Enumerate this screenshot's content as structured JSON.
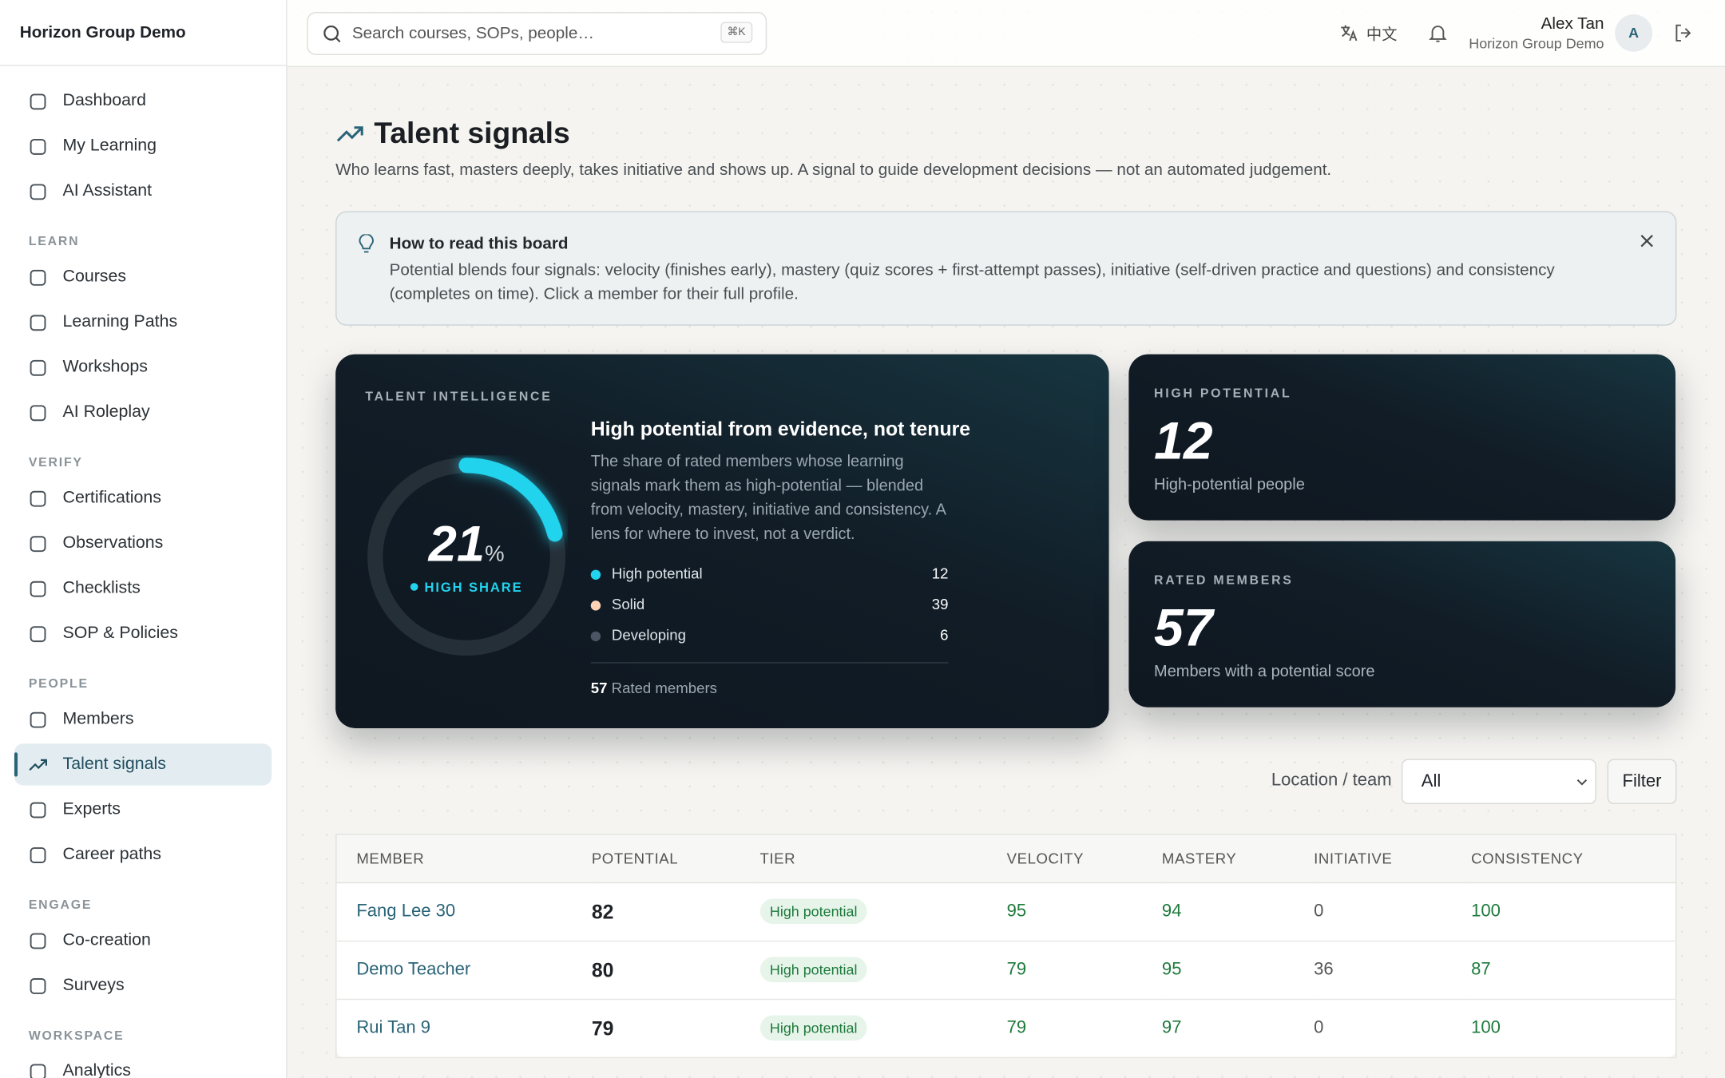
{
  "app": "Horizon Group Demo",
  "sidebar": {
    "groups": [
      {
        "items": [
          {
            "label": "Dashboard"
          },
          {
            "label": "My Learning"
          },
          {
            "label": "AI Assistant"
          }
        ]
      },
      {
        "title": "LEARN",
        "items": [
          {
            "label": "Courses"
          },
          {
            "label": "Learning Paths"
          },
          {
            "label": "Workshops"
          },
          {
            "label": "AI Roleplay"
          }
        ]
      },
      {
        "title": "VERIFY",
        "items": [
          {
            "label": "Certifications"
          },
          {
            "label": "Observations"
          },
          {
            "label": "Checklists"
          },
          {
            "label": "SOP & Policies"
          }
        ]
      },
      {
        "title": "PEOPLE",
        "items": [
          {
            "label": "Members"
          },
          {
            "label": "Talent signals",
            "active": true
          },
          {
            "label": "Experts"
          },
          {
            "label": "Career paths"
          }
        ]
      },
      {
        "title": "ENGAGE",
        "items": [
          {
            "label": "Co-creation"
          },
          {
            "label": "Surveys"
          }
        ]
      },
      {
        "title": "WORKSPACE",
        "items": [
          {
            "label": "Analytics"
          }
        ]
      }
    ]
  },
  "topbar": {
    "search": "Search courses, SOPs, people…",
    "shortcut": "⌘K",
    "language": "中文",
    "user": "Alex Tan",
    "org": "Horizon Group Demo",
    "avatar": "A"
  },
  "page": {
    "title": "Talent signals",
    "subtitle": "Who learns fast, masters deeply, takes initiative and shows up. A signal to guide development decisions — not an automated judgement."
  },
  "info": {
    "title": "How to read this board",
    "text": "Potential blends four signals: velocity (finishes early), mastery (quiz scores + first-attempt passes), initiative (self-driven practice and questions) and consistency (completes on time). Click a member for their full profile."
  },
  "hero": {
    "eyebrow": "TALENT INTELLIGENCE",
    "share": 21,
    "share_unit": "%",
    "share_label": "HIGH SHARE",
    "heading": "High potential from evidence, not tenure",
    "description": "The share of rated members whose learning signals mark them as high-potential — blended from velocity, mastery, initiative and consistency. A lens for where to invest, not a verdict.",
    "legend": [
      {
        "name": "High potential",
        "value": 12,
        "color": "#22d3ee"
      },
      {
        "name": "Solid",
        "value": 39,
        "color": "#fcd3b6"
      },
      {
        "name": "Developing",
        "value": 6,
        "color": "#4b5563"
      }
    ],
    "total": 57,
    "total_label": "Rated members"
  },
  "stats": [
    {
      "eyebrow": "HIGH POTENTIAL",
      "value": 12,
      "caption": "High-potential people"
    },
    {
      "eyebrow": "RATED MEMBERS",
      "value": 57,
      "caption": "Members with a potential score"
    }
  ],
  "filter": {
    "label": "Location / team",
    "selected": "All",
    "button": "Filter"
  },
  "table": {
    "headers": [
      "MEMBER",
      "POTENTIAL",
      "TIER",
      "VELOCITY",
      "MASTERY",
      "INITIATIVE",
      "CONSISTENCY"
    ],
    "rows": [
      [
        "Fang Lee 30",
        82,
        "High potential",
        95,
        94,
        0,
        100
      ],
      [
        "Demo Teacher",
        80,
        "High potential",
        79,
        95,
        36,
        87
      ],
      [
        "Rui Tan 9",
        79,
        "High potential",
        79,
        97,
        0,
        100
      ]
    ]
  }
}
